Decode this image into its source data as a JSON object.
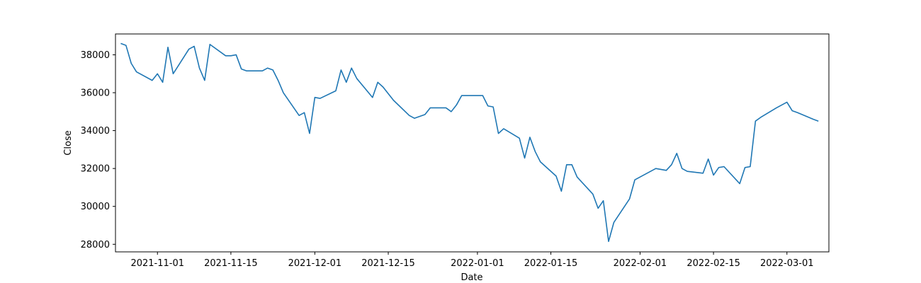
{
  "chart_data": {
    "type": "line",
    "title": "",
    "xlabel": "Date",
    "ylabel": "Close",
    "xlim": [
      "2021-10-24",
      "2022-03-09"
    ],
    "ylim": [
      27600,
      39100
    ],
    "grid": false,
    "legend": "none",
    "line_color": "#1f77b4",
    "x_ticks": [
      "2021-11-01",
      "2021-11-15",
      "2021-12-01",
      "2021-12-15",
      "2022-01-01",
      "2022-01-15",
      "2022-02-01",
      "2022-02-15",
      "2022-03-01"
    ],
    "y_ticks": [
      28000,
      30000,
      32000,
      34000,
      36000,
      38000
    ],
    "y_tick_labels": [
      "28000",
      "30000",
      "32000",
      "34000",
      "36000",
      "38000"
    ],
    "series": [
      {
        "x": [
          "2021-10-25",
          "2021-10-26",
          "2021-10-27",
          "2021-10-28",
          "2021-10-31",
          "2021-11-01",
          "2021-11-02",
          "2021-11-03",
          "2021-11-04",
          "2021-11-07",
          "2021-11-08",
          "2021-11-09",
          "2021-11-10",
          "2021-11-11",
          "2021-11-14",
          "2021-11-15",
          "2021-11-16",
          "2021-11-17",
          "2021-11-18",
          "2021-11-21",
          "2021-11-22",
          "2021-11-23",
          "2021-11-24",
          "2021-11-25",
          "2021-11-28",
          "2021-11-29",
          "2021-11-30",
          "2021-12-01",
          "2021-12-02",
          "2021-12-05",
          "2021-12-06",
          "2021-12-07",
          "2021-12-08",
          "2021-12-09",
          "2021-12-12",
          "2021-12-13",
          "2021-12-14",
          "2021-12-15",
          "2021-12-16",
          "2021-12-19",
          "2021-12-20",
          "2021-12-21",
          "2021-12-22",
          "2021-12-23",
          "2021-12-26",
          "2021-12-27",
          "2021-12-28",
          "2021-12-29",
          "2021-12-30",
          "2022-01-02",
          "2022-01-03",
          "2022-01-04",
          "2022-01-05",
          "2022-01-06",
          "2022-01-09",
          "2022-01-10",
          "2022-01-11",
          "2022-01-12",
          "2022-01-13",
          "2022-01-16",
          "2022-01-17",
          "2022-01-18",
          "2022-01-19",
          "2022-01-20",
          "2022-01-23",
          "2022-01-24",
          "2022-01-25",
          "2022-01-26",
          "2022-01-27",
          "2022-01-30",
          "2022-01-31",
          "2022-02-01",
          "2022-02-02",
          "2022-02-03",
          "2022-02-04",
          "2022-02-06",
          "2022-02-07",
          "2022-02-08",
          "2022-02-09",
          "2022-02-10",
          "2022-02-13",
          "2022-02-14",
          "2022-02-15",
          "2022-02-16",
          "2022-02-17",
          "2022-02-20",
          "2022-02-21",
          "2022-02-22",
          "2022-02-23",
          "2022-02-24",
          "2022-02-27",
          "2022-02-28",
          "2022-03-01",
          "2022-03-02",
          "2022-03-03",
          "2022-03-06",
          "2022-03-07"
        ],
        "y": [
          38600,
          38500,
          37550,
          37100,
          36650,
          37000,
          36550,
          38400,
          37000,
          38300,
          38450,
          37300,
          36650,
          38550,
          37950,
          37950,
          38000,
          37250,
          37150,
          37150,
          37300,
          37200,
          36650,
          36000,
          34800,
          34950,
          33850,
          35750,
          35700,
          36100,
          37200,
          36550,
          37300,
          36750,
          35750,
          36550,
          36300,
          35950,
          35600,
          34800,
          34650,
          34750,
          34850,
          35200,
          35200,
          35000,
          35350,
          35850,
          35850,
          35850,
          35300,
          35250,
          33850,
          34100,
          33600,
          32550,
          33650,
          32900,
          32350,
          31600,
          30800,
          32200,
          32200,
          31550,
          30650,
          29900,
          30300,
          28150,
          29150,
          30400,
          31400,
          31550,
          31700,
          31850,
          32000,
          31900,
          32200,
          32800,
          32000,
          31850,
          31750,
          32500,
          31650,
          32050,
          32100,
          31200,
          32050,
          32100,
          34500,
          34700,
          35200,
          35350,
          35500,
          35050,
          34950,
          34600,
          34500
        ]
      }
    ]
  }
}
